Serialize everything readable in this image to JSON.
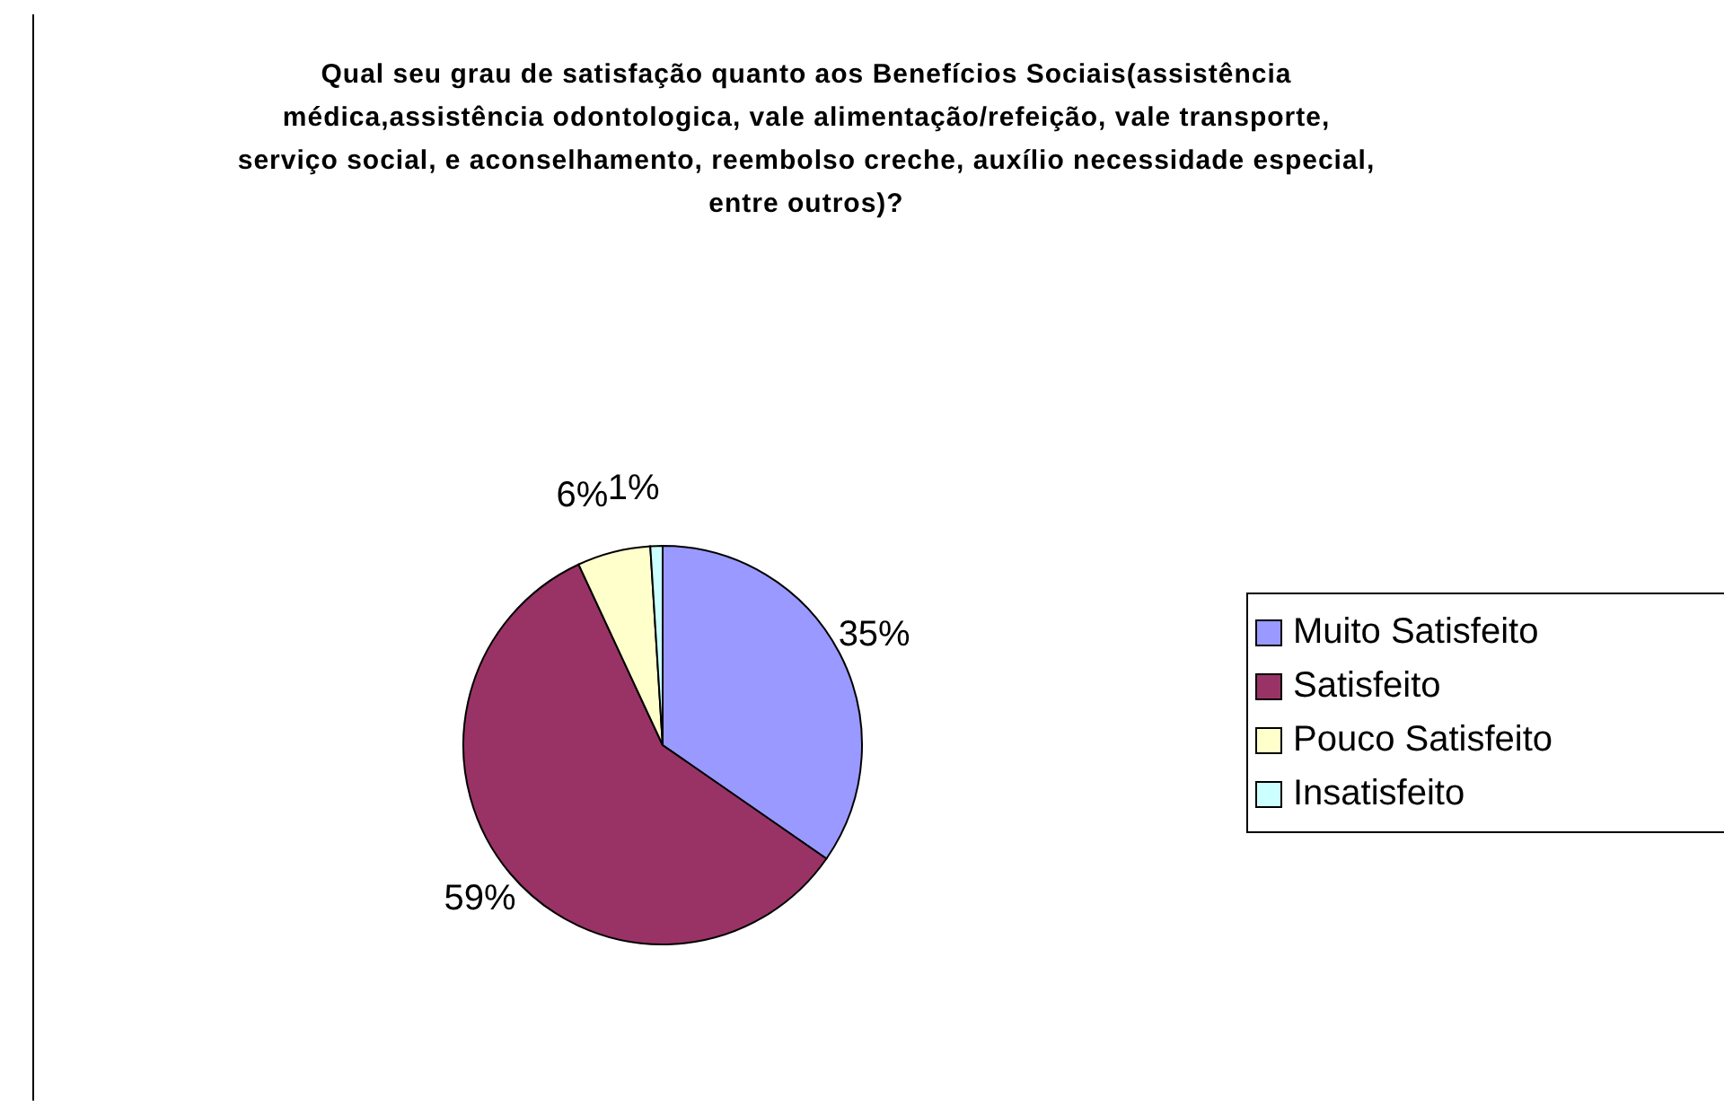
{
  "chart_data": {
    "type": "pie",
    "title": "Qual seu grau de satisfação quanto aos Benefícios Sociais(assistência médica,assistência odontologica, vale alimentação/refeição, vale transporte, serviço social, e aconselhamento, reembolso creche, auxílio necessidade especial, entre outros)?",
    "categories": [
      "Muito Satisfeito",
      "Satisfeito",
      "Pouco Satisfeito",
      "Insatisfeito"
    ],
    "values": [
      35,
      59,
      6,
      1
    ],
    "colors": [
      "#9999ff",
      "#993366",
      "#ffffcc",
      "#ccffff"
    ],
    "value_labels": [
      "35%",
      "59%",
      "6%",
      "1%"
    ],
    "legend": "right"
  }
}
